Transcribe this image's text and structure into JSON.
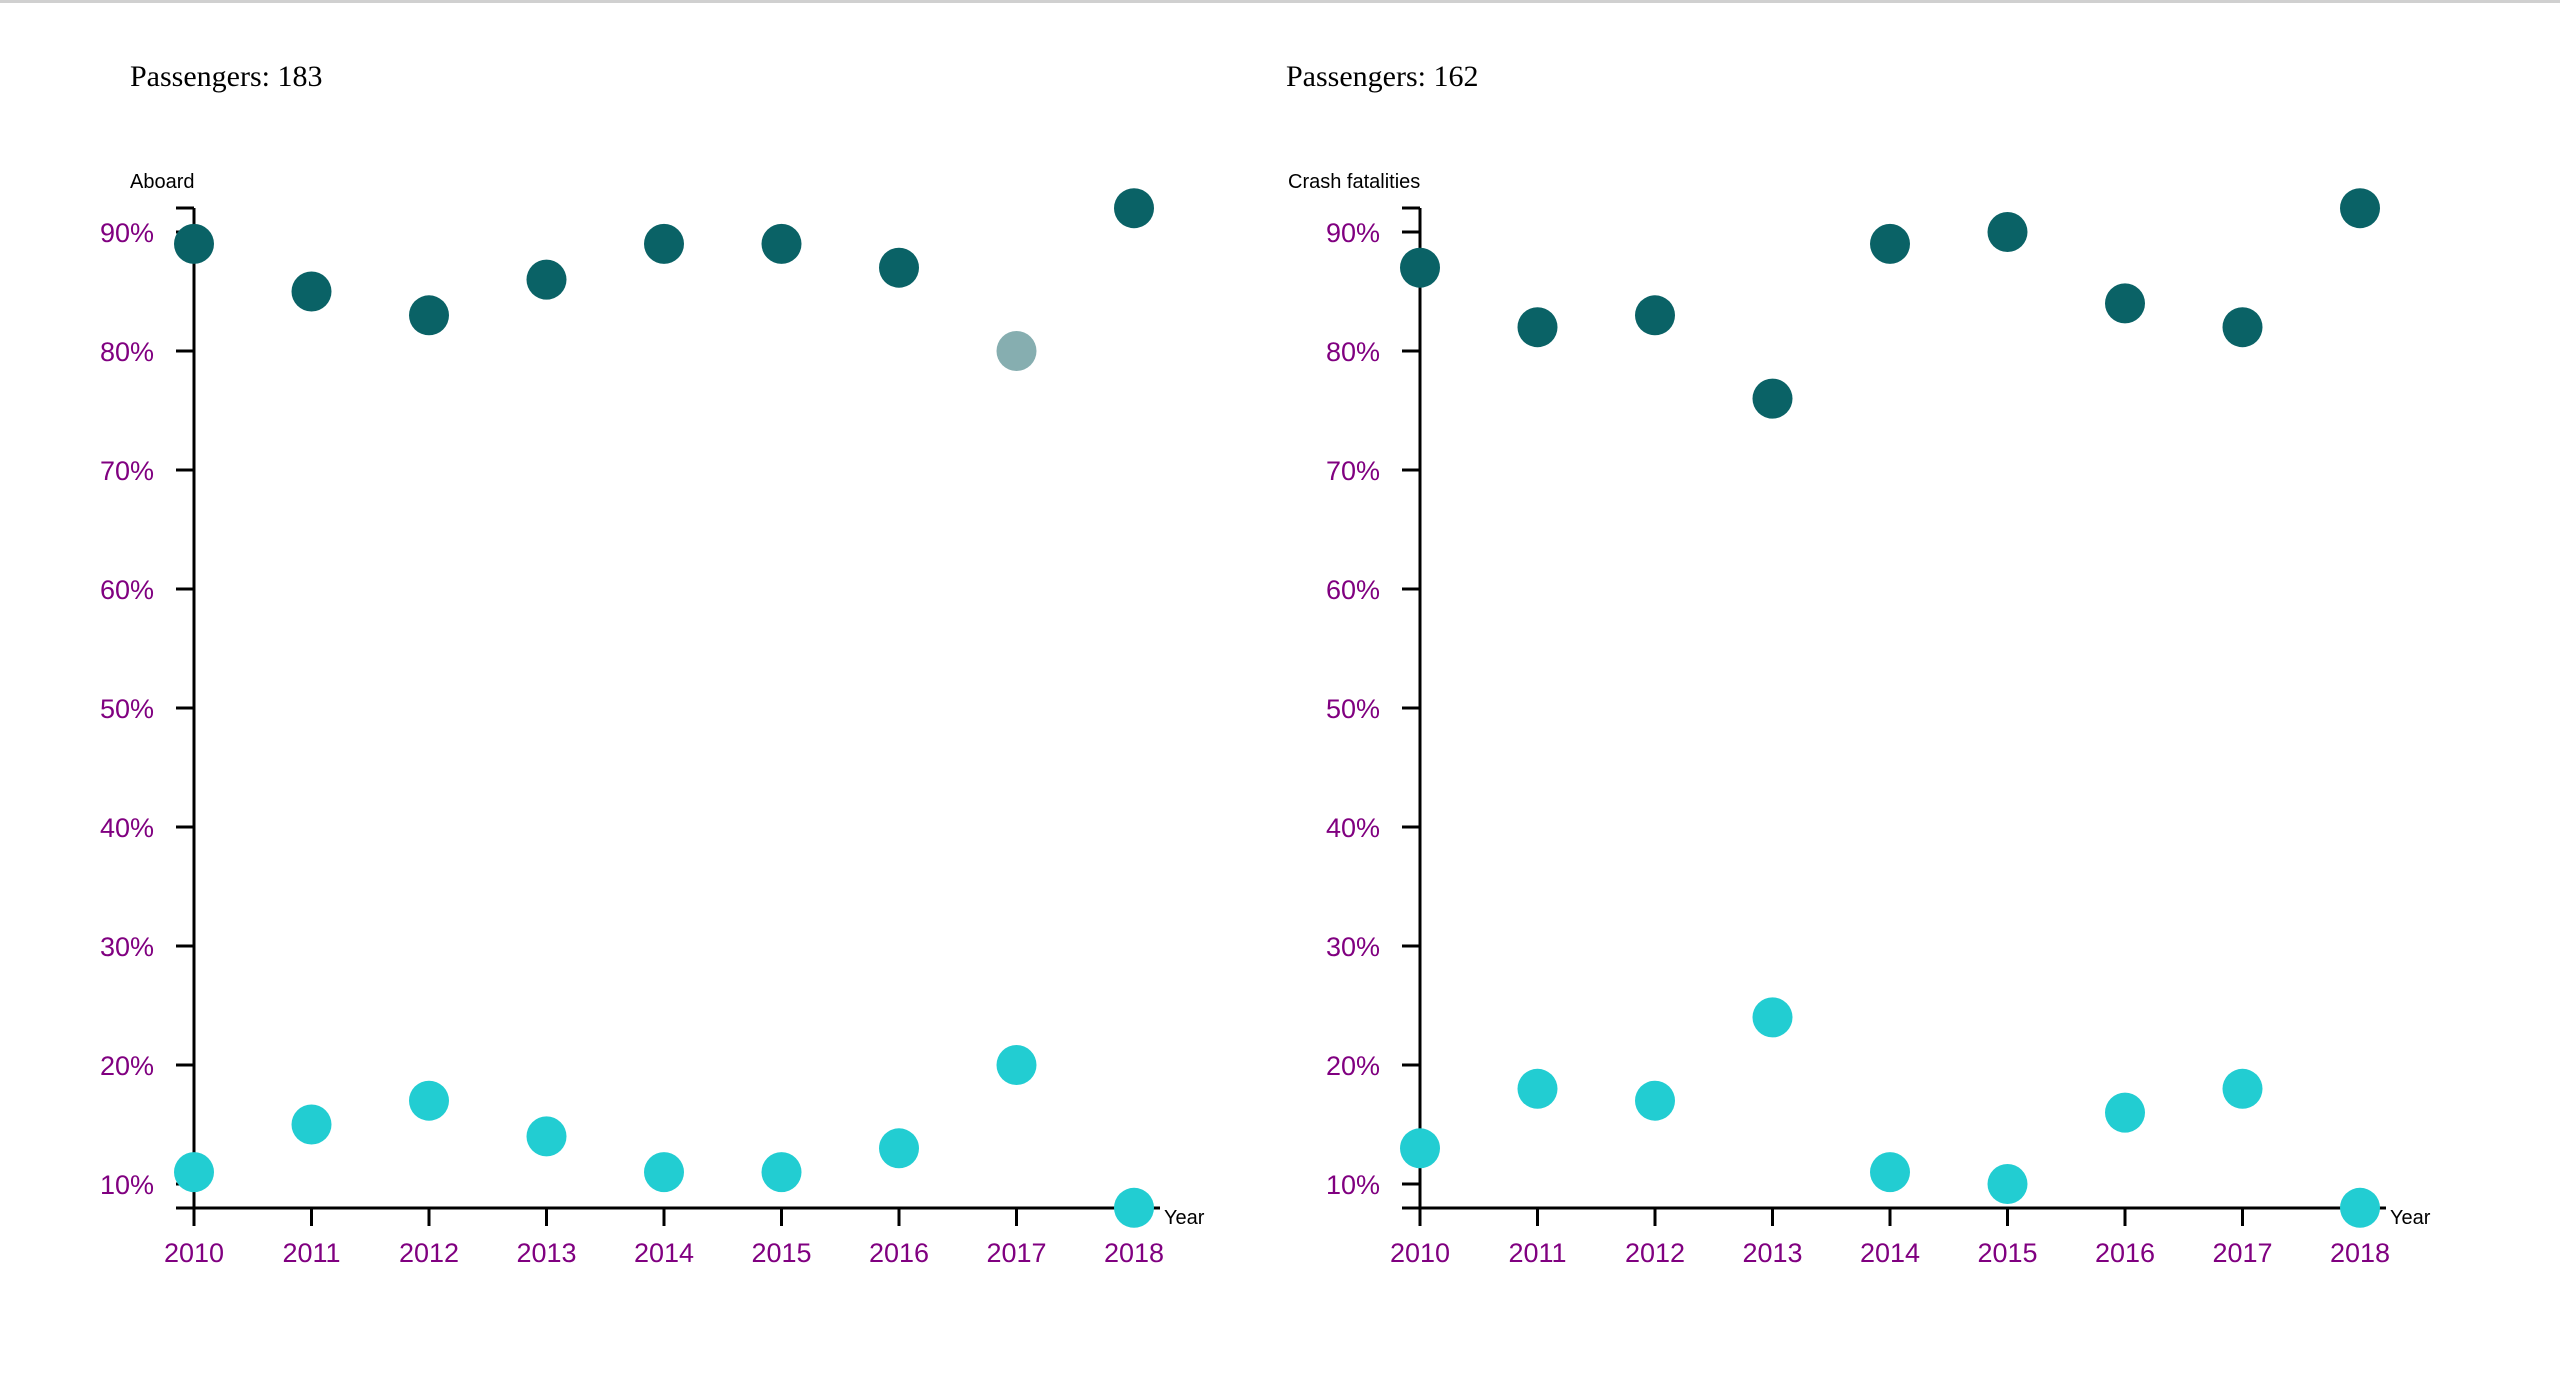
{
  "colors": {
    "dark_series": "#0a6266",
    "light_series": "#22cdd2",
    "highlight_point": "#86aeb0",
    "tick_labels": "#800080",
    "axis": "#000000"
  },
  "chart_data": [
    {
      "type": "scatter",
      "title": "Passengers: 183",
      "ylabel": "Aboard",
      "xlabel": "Year",
      "x": [
        2010,
        2011,
        2012,
        2013,
        2014,
        2015,
        2016,
        2017,
        2018
      ],
      "x_tick_labels": [
        "2010",
        "2011",
        "2012",
        "2013",
        "2014",
        "2015",
        "2016",
        "2017",
        "2018"
      ],
      "y_tick_labels": [
        "10%",
        "20%",
        "30%",
        "40%",
        "50%",
        "60%",
        "70%",
        "80%",
        "90%"
      ],
      "y_ticks": [
        10,
        20,
        30,
        40,
        50,
        60,
        70,
        80,
        90
      ],
      "ylim": [
        8,
        92
      ],
      "grid": false,
      "series": [
        {
          "values": [
            89,
            85,
            83,
            86,
            89,
            89,
            87,
            80,
            92
          ],
          "highlight_index": 7
        },
        {
          "values": [
            11,
            15,
            17,
            14,
            11,
            11,
            13,
            20,
            8
          ]
        }
      ]
    },
    {
      "type": "scatter",
      "title": "Passengers: 162",
      "ylabel": "Crash fatalities",
      "xlabel": "Year",
      "x": [
        2010,
        2011,
        2012,
        2013,
        2014,
        2015,
        2016,
        2017,
        2018
      ],
      "x_tick_labels": [
        "2010",
        "2011",
        "2012",
        "2013",
        "2014",
        "2015",
        "2016",
        "2017",
        "2018"
      ],
      "y_tick_labels": [
        "10%",
        "20%",
        "30%",
        "40%",
        "50%",
        "60%",
        "70%",
        "80%",
        "90%"
      ],
      "y_ticks": [
        10,
        20,
        30,
        40,
        50,
        60,
        70,
        80,
        90
      ],
      "ylim": [
        8,
        92
      ],
      "grid": false,
      "series": [
        {
          "values": [
            87,
            82,
            83,
            76,
            89,
            90,
            84,
            82,
            92
          ]
        },
        {
          "values": [
            13,
            18,
            17,
            24,
            11,
            10,
            16,
            18,
            8
          ]
        }
      ]
    }
  ]
}
